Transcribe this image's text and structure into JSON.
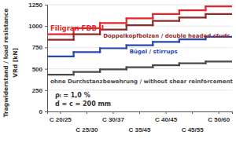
{
  "chart_data": {
    "type": "step",
    "ylabel": [
      "Tragwiderstand / load resistance",
      "VRd [kN]"
    ],
    "categories": [
      "C 20/25",
      "C 25/30",
      "C 30/37",
      "C 35/45",
      "C 40/45",
      "C 45/55",
      "C 50/60"
    ],
    "series": [
      {
        "name": "Filigran FDB II",
        "color": "#e3262b",
        "values": [
          905,
          975,
          1035,
          1090,
          1140,
          1185,
          1230
        ]
      },
      {
        "name": "Doppelkopfbolzen / double headed studs",
        "color": "#8e2a2a",
        "values": [
          840,
          905,
          960,
          1010,
          1060,
          1100,
          1140
        ]
      },
      {
        "name": "Bügel / stirrups",
        "color": "#2846b0",
        "values": [
          645,
          695,
          740,
          775,
          815,
          845,
          875
        ]
      },
      {
        "name": "ohne Durchstanzbewehrung / without shear reinforcement",
        "color": "#4a4a4a",
        "values": [
          430,
          463,
          492,
          518,
          542,
          564,
          584
        ]
      }
    ],
    "annotations": [
      "ρₗ = 1,0 %",
      "d = c = 200 mm"
    ],
    "ylim": [
      0,
      1250
    ],
    "yticks": [
      0,
      250,
      500,
      750,
      1000,
      1250
    ],
    "grid": true
  }
}
